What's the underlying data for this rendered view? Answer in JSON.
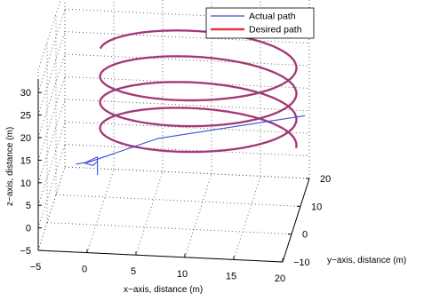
{
  "chart_data": {
    "type": "line",
    "title": "",
    "xlabel": "x−axis, distance (m)",
    "ylabel": "y−axis, distance (m)",
    "zlabel": "z−axis, distance (m)",
    "xlim": [
      -5,
      20
    ],
    "ylim": [
      -10,
      20
    ],
    "zlim": [
      -5,
      35
    ],
    "xticks": [
      "−5",
      "0",
      "5",
      "10",
      "15",
      "20"
    ],
    "yticks": [
      "−10",
      "0",
      "10",
      "20"
    ],
    "zticks": [
      "−5",
      "0",
      "5",
      "10",
      "15",
      "20",
      "25",
      "30"
    ],
    "grid": true,
    "legend_position": "top-right",
    "series": [
      {
        "name": "Actual path",
        "color": "#3a4fd6",
        "note_shape": "helix",
        "helix": {
          "center_x": 10,
          "center_y": 5,
          "radius": 10,
          "z_start": 11,
          "z_end": 31,
          "turns": 3.5
        },
        "lead_in": [
          [
            -1.5,
            -6,
            12
          ],
          [
            -0.5,
            -6,
            12.5
          ],
          [
            0.6,
            -5,
            13.2
          ],
          [
            0.6,
            -5,
            12.2
          ],
          [
            0.2,
            -5.5,
            11.6
          ],
          [
            -0.6,
            -6,
            12.3
          ],
          [
            0.2,
            -6,
            12.9
          ],
          [
            6,
            3,
            12.9
          ],
          [
            14,
            10,
            12.3
          ],
          [
            20,
            15,
            12.0
          ]
        ]
      },
      {
        "name": "Desired path",
        "color": "#e8323e",
        "helix": {
          "center_x": 10,
          "center_y": 5,
          "radius": 10,
          "z_start": 11,
          "z_end": 31,
          "turns": 3.5
        }
      }
    ]
  }
}
